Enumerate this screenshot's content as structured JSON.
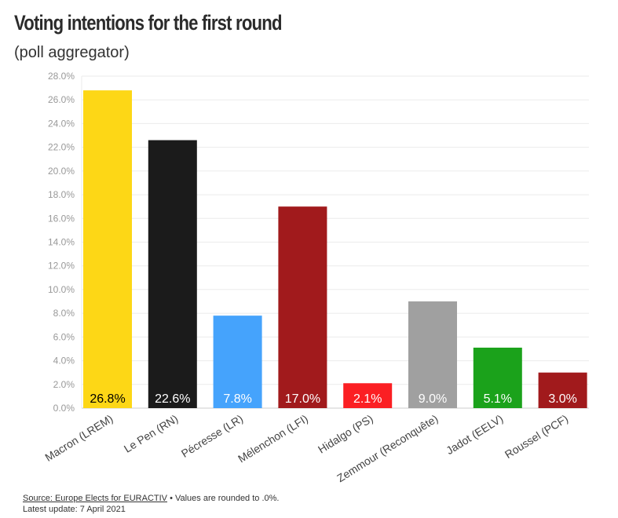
{
  "chart_data": {
    "type": "bar",
    "title": "Voting intentions for the first round",
    "subtitle": "(poll aggregator)",
    "categories": [
      "Macron (LREM)",
      "Le Pen (RN)",
      "Pécresse (LR)",
      "Mélenchon (LFI)",
      "Hidalgo (PS)",
      "Zemmour (Reconquête)",
      "Jadot (EELV)",
      "Roussel (PCF)"
    ],
    "values": [
      26.8,
      22.6,
      7.8,
      17.0,
      2.1,
      9.0,
      5.1,
      3.0
    ],
    "value_labels": [
      "26.8%",
      "22.6%",
      "7.8%",
      "17.0%",
      "2.1%",
      "9.0%",
      "5.1%",
      "3.0%"
    ],
    "colors": [
      "#fdd716",
      "#1b1b1b",
      "#45a3fc",
      "#a11a1c",
      "#fb1f23",
      "#a0a0a0",
      "#1ba21b",
      "#a11a1c"
    ],
    "label_colors": [
      "#000000",
      "#ffffff",
      "#ffffff",
      "#ffffff",
      "#ffffff",
      "#ffffff",
      "#ffffff",
      "#ffffff"
    ],
    "yticks": [
      "0.0%",
      "2.0%",
      "4.0%",
      "6.0%",
      "8.0%",
      "10.0%",
      "12.0%",
      "14.0%",
      "16.0%",
      "18.0%",
      "20.0%",
      "22.0%",
      "24.0%",
      "26.0%",
      "28.0%"
    ],
    "ylim": [
      0,
      28
    ],
    "grid": true
  },
  "footer": {
    "source": "Source: Europe Elects for EURACTIV",
    "note": " • Values are rounded to .0%.",
    "update": "Latest update: 7 April 2021"
  }
}
